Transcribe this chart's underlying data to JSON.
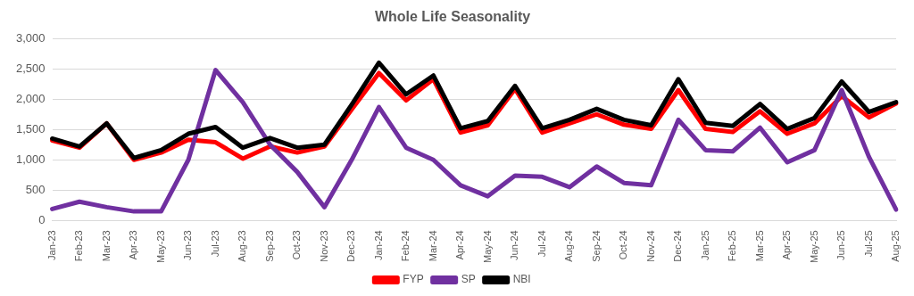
{
  "chart_data": {
    "type": "line",
    "title": "Whole Life Seasonality",
    "categories": [
      "Jan-23",
      "Feb-23",
      "Mar-23",
      "Apr-23",
      "May-23",
      "Jun-23",
      "Jul-23",
      "Aug-23",
      "Sep-23",
      "Oct-23",
      "Nov-23",
      "Dec-23",
      "Jan-24",
      "Feb-24",
      "Mar-24",
      "Apr-24",
      "May-24",
      "Jun-24",
      "Jul-24",
      "Aug-24",
      "Sep-24",
      "Oct-24",
      "Nov-24",
      "Dec-24",
      "Jan-25",
      "Feb-25",
      "Mar-25",
      "Apr-25",
      "May-25",
      "Jun-25",
      "Jul-25",
      "Aug-25"
    ],
    "series": [
      {
        "name": "FYP",
        "color": "#ff0000",
        "values": [
          1320,
          1200,
          1600,
          1000,
          1120,
          1330,
          1290,
          1020,
          1220,
          1120,
          1220,
          1830,
          2430,
          1980,
          2330,
          1450,
          1570,
          2170,
          1450,
          1600,
          1750,
          1580,
          1510,
          2150,
          1510,
          1460,
          1800,
          1430,
          1600,
          2050,
          1700,
          1930
        ]
      },
      {
        "name": "SP",
        "color": "#7030a0",
        "values": [
          190,
          310,
          220,
          150,
          150,
          1000,
          2480,
          1950,
          1250,
          800,
          220,
          1000,
          1870,
          1200,
          1000,
          580,
          400,
          740,
          720,
          550,
          890,
          620,
          580,
          1660,
          1160,
          1140,
          1530,
          960,
          1160,
          2150,
          1050,
          180
        ]
      },
      {
        "name": "NBI",
        "color": "#000000",
        "values": [
          1350,
          1220,
          1600,
          1030,
          1160,
          1430,
          1540,
          1200,
          1360,
          1200,
          1250,
          1910,
          2600,
          2080,
          2390,
          1520,
          1640,
          2220,
          1520,
          1660,
          1840,
          1660,
          1570,
          2330,
          1610,
          1560,
          1920,
          1510,
          1690,
          2290,
          1790,
          1950
        ]
      }
    ],
    "ylim": [
      0,
      3000
    ],
    "yticks": [
      {
        "value": 0,
        "label": "0"
      },
      {
        "value": 500,
        "label": "500"
      },
      {
        "value": 1000,
        "label": "1,000"
      },
      {
        "value": 1500,
        "label": "1,500"
      },
      {
        "value": 2000,
        "label": "2,000"
      },
      {
        "value": 2500,
        "label": "2,500"
      },
      {
        "value": 3000,
        "label": "3,000"
      }
    ],
    "grid": "y",
    "legend": "bottom",
    "marker": "none",
    "line_style": "solid"
  }
}
